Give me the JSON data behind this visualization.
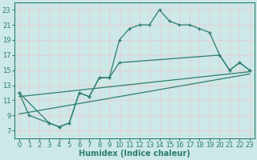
{
  "title": "",
  "xlabel": "Humidex (Indice chaleur)",
  "xlim": [
    -0.5,
    23.5
  ],
  "ylim": [
    6,
    24
  ],
  "yticks": [
    7,
    9,
    11,
    13,
    15,
    17,
    19,
    21,
    23
  ],
  "xticks": [
    0,
    1,
    2,
    3,
    4,
    5,
    6,
    7,
    8,
    9,
    10,
    11,
    12,
    13,
    14,
    15,
    16,
    17,
    18,
    19,
    20,
    21,
    22,
    23
  ],
  "background_color": "#cce8e8",
  "grid_color": "#e8d0d0",
  "line_color": "#2e7d6e",
  "line1_x": [
    0,
    1,
    3,
    4,
    5,
    6,
    7,
    8,
    9,
    10,
    11,
    12,
    13,
    14,
    15,
    16,
    17,
    18,
    19,
    20,
    21,
    22,
    23
  ],
  "line1_y": [
    12,
    9,
    8,
    7.5,
    8,
    12,
    11.5,
    14,
    14,
    19,
    20.5,
    21,
    21,
    23,
    21.5,
    21,
    21,
    20.5,
    20,
    17,
    15,
    16,
    15
  ],
  "line1_markers_x": [
    0,
    1,
    3,
    4,
    5,
    6,
    7,
    8,
    9,
    10,
    11,
    12,
    13,
    14,
    15,
    16,
    17,
    18,
    19,
    20,
    21,
    22,
    23
  ],
  "line2_x": [
    0,
    3,
    4,
    5,
    6,
    7,
    8,
    9,
    10,
    20,
    21,
    22,
    23
  ],
  "line2_y": [
    12,
    8,
    7.5,
    8,
    12,
    11.5,
    14,
    14,
    16,
    17,
    15,
    16,
    15
  ],
  "line3_x": [
    0,
    23
  ],
  "line3_y": [
    9.2,
    14.5
  ],
  "line4_x": [
    0,
    23
  ],
  "line4_y": [
    11.5,
    14.8
  ],
  "font_size": 7
}
